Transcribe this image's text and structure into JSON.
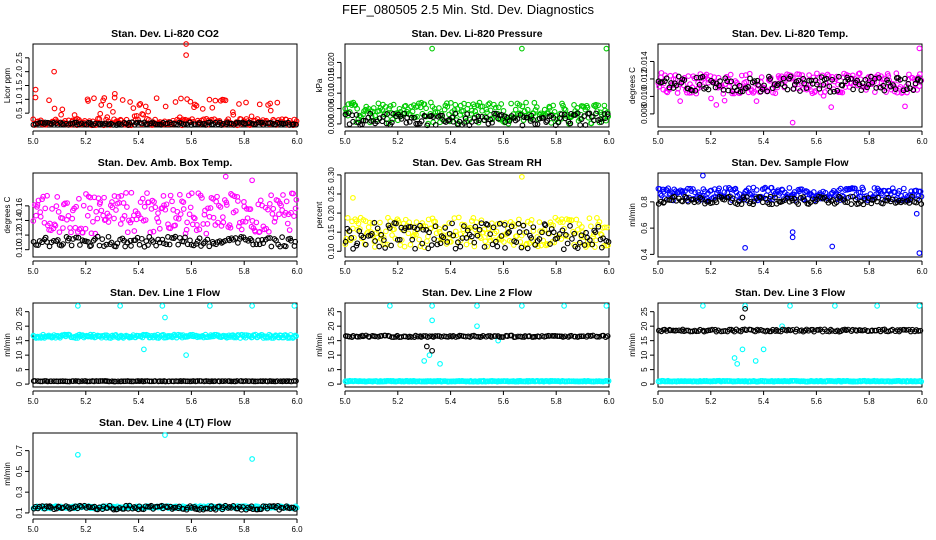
{
  "figure_title": "FEF_080505  2.5 Min. Std. Dev. Diagnostics",
  "chart_data": [
    {
      "type": "scatter",
      "title": "Stan. Dev. Li-820 CO2",
      "ylabel": "Licor ppm",
      "xlabel": "",
      "xlim": [
        5.0,
        6.0
      ],
      "ylim": [
        0.0,
        3.0
      ],
      "xticks": [
        5.0,
        5.2,
        5.4,
        5.6,
        5.8,
        6.0
      ],
      "xtick_labels": [
        "5.0",
        "5.2",
        "5.4",
        "5.6",
        "5.8",
        "6.0"
      ],
      "yticks": [
        0.5,
        1.0,
        1.5,
        2.0,
        2.5
      ],
      "ytick_labels": [
        "0.5",
        "1.0",
        "1.5",
        "2.0",
        "2.5"
      ],
      "series": [
        {
          "name": "red",
          "color": "#ff0000",
          "profile": {
            "base": 0.18,
            "spread": 0.12,
            "outlier_rate": 0.22,
            "outlier_span": 0.9
          },
          "highlights": [
            [
              5.01,
              1.35
            ],
            [
              5.08,
              2.0
            ],
            [
              5.58,
              3.0
            ],
            [
              5.58,
              2.6
            ],
            [
              5.31,
              1.2
            ],
            [
              5.27,
              1.05
            ]
          ]
        },
        {
          "name": "black",
          "color": "#000000",
          "profile": {
            "base": 0.12,
            "spread": 0.05,
            "outlier_rate": 0.0,
            "outlier_span": 0.0
          },
          "highlights": []
        }
      ]
    },
    {
      "type": "scatter",
      "title": "Stan. Dev. Li-820 Pressure",
      "ylabel": "kPa",
      "xlabel": "",
      "xlim": [
        5.0,
        6.0
      ],
      "ylim": [
        -0.001,
        0.026
      ],
      "xticks": [
        5.0,
        5.2,
        5.4,
        5.6,
        5.8,
        6.0
      ],
      "xtick_labels": [
        "5.0",
        "5.2",
        "5.4",
        "5.6",
        "5.8",
        "6.0"
      ],
      "yticks": [
        0.0,
        0.005,
        0.01,
        0.015,
        0.02
      ],
      "ytick_labels": [
        "0.000",
        "0.005",
        "0.010",
        "0.015",
        "0.020"
      ],
      "series": [
        {
          "name": "green",
          "color": "#00cc00",
          "profile": {
            "base": 0.0035,
            "spread": 0.0035,
            "outlier_rate": 0.0,
            "outlier_span": 0.0
          },
          "highlights": [
            [
              5.33,
              0.0245
            ],
            [
              5.67,
              0.0245
            ],
            [
              5.99,
              0.0245
            ]
          ]
        },
        {
          "name": "black",
          "color": "#000000",
          "profile": {
            "base": 0.0015,
            "spread": 0.002,
            "outlier_rate": 0.0,
            "outlier_span": 0.0
          },
          "highlights": []
        }
      ]
    },
    {
      "type": "scatter",
      "title": "Stan. Dev. Li-820 Temp.",
      "ylabel": "degrees C",
      "xlabel": "",
      "xlim": [
        5.0,
        6.0
      ],
      "ylim": [
        0.0065,
        0.016
      ],
      "xticks": [
        5.0,
        5.2,
        5.4,
        5.6,
        5.8,
        6.0
      ],
      "xtick_labels": [
        "5.0",
        "5.2",
        "5.4",
        "5.6",
        "5.8",
        "6.0"
      ],
      "yticks": [
        0.008,
        0.01,
        0.012,
        0.014
      ],
      "ytick_labels": [
        "0.008",
        "0.010",
        "0.012",
        "0.014"
      ],
      "series": [
        {
          "name": "magenta",
          "color": "#ff00ff",
          "profile": {
            "base": 0.0115,
            "spread": 0.0012,
            "outlier_rate": 0.06,
            "outlier_span": -0.003
          },
          "highlights": [
            [
              5.51,
              0.007
            ],
            [
              5.99,
              0.0155
            ]
          ]
        },
        {
          "name": "black",
          "color": "#000000",
          "profile": {
            "base": 0.0114,
            "spread": 0.0009,
            "outlier_rate": 0.0,
            "outlier_span": 0.0
          },
          "highlights": []
        }
      ]
    },
    {
      "type": "scatter",
      "title": "Stan. Dev. Amb. Box Temp.",
      "ylabel": "degrees C",
      "xlabel": "",
      "xlim": [
        5.0,
        6.0
      ],
      "ylim": [
        0.09,
        0.205
      ],
      "xticks": [
        5.0,
        5.2,
        5.4,
        5.6,
        5.8,
        6.0
      ],
      "xtick_labels": [
        "5.0",
        "5.2",
        "5.4",
        "5.6",
        "5.8",
        "6.0"
      ],
      "yticks": [
        0.1,
        0.12,
        0.14,
        0.16
      ],
      "ytick_labels": [
        "0.10",
        "0.12",
        "0.14",
        "0.16"
      ],
      "series": [
        {
          "name": "magenta",
          "color": "#ff00ff",
          "profile": {
            "base": 0.15,
            "spread": 0.028,
            "outlier_rate": 0.0,
            "outlier_span": 0.0
          },
          "highlights": [
            [
              5.73,
              0.2
            ],
            [
              5.83,
              0.195
            ]
          ]
        },
        {
          "name": "black",
          "color": "#000000",
          "profile": {
            "base": 0.111,
            "spread": 0.007,
            "outlier_rate": 0.0,
            "outlier_span": 0.0
          },
          "highlights": []
        }
      ]
    },
    {
      "type": "scatter",
      "title": "Stan. Dev. Gas Stream RH",
      "ylabel": "percent",
      "xlabel": "",
      "xlim": [
        5.0,
        6.0
      ],
      "ylim": [
        0.085,
        0.305
      ],
      "xticks": [
        5.0,
        5.2,
        5.4,
        5.6,
        5.8,
        6.0
      ],
      "xtick_labels": [
        "5.0",
        "5.2",
        "5.4",
        "5.6",
        "5.8",
        "6.0"
      ],
      "yticks": [
        0.1,
        0.15,
        0.2,
        0.25,
        0.3
      ],
      "ytick_labels": [
        "0.10",
        "0.15",
        "0.20",
        "0.25",
        "0.30"
      ],
      "series": [
        {
          "name": "yellow",
          "color": "#ffff00",
          "profile": {
            "base": 0.15,
            "spread": 0.04,
            "outlier_rate": 0.0,
            "outlier_span": 0.0
          },
          "highlights": [
            [
              5.67,
              0.295
            ],
            [
              5.03,
              0.24
            ]
          ]
        },
        {
          "name": "black",
          "color": "#000000",
          "profile": {
            "base": 0.14,
            "spread": 0.035,
            "outlier_rate": 0.0,
            "outlier_span": 0.0
          },
          "highlights": []
        }
      ]
    },
    {
      "type": "scatter",
      "title": "Stan. Dev. Sample Flow",
      "ylabel": "ml/min",
      "xlabel": "",
      "xlim": [
        5.0,
        6.0
      ],
      "ylim": [
        0.38,
        1.02
      ],
      "xticks": [
        5.0,
        5.2,
        5.4,
        5.6,
        5.8,
        6.0
      ],
      "xtick_labels": [
        "5.0",
        "5.2",
        "5.4",
        "5.6",
        "5.8",
        "6.0"
      ],
      "yticks": [
        0.4,
        0.6,
        0.8
      ],
      "ytick_labels": [
        "0.4",
        "0.6",
        "0.8"
      ],
      "series": [
        {
          "name": "blue",
          "color": "#0000ff",
          "profile": {
            "base": 0.86,
            "spread": 0.05,
            "outlier_rate": 0.0,
            "outlier_span": 0.0
          },
          "highlights": [
            [
              5.17,
              1.0
            ],
            [
              5.33,
              0.45
            ],
            [
              5.51,
              0.57
            ],
            [
              5.51,
              0.53
            ],
            [
              5.66,
              0.46
            ],
            [
              5.99,
              0.41
            ],
            [
              5.98,
              0.71
            ]
          ]
        },
        {
          "name": "black",
          "color": "#000000",
          "profile": {
            "base": 0.81,
            "spread": 0.03,
            "outlier_rate": 0.0,
            "outlier_span": 0.0
          },
          "highlights": []
        }
      ]
    },
    {
      "type": "scatter",
      "title": "Stan. Dev. Line 1 Flow",
      "ylabel": "ml/min",
      "xlabel": "",
      "xlim": [
        5.0,
        6.0
      ],
      "ylim": [
        -1.0,
        28.0
      ],
      "xticks": [
        5.0,
        5.2,
        5.4,
        5.6,
        5.8,
        6.0
      ],
      "xtick_labels": [
        "5.0",
        "5.2",
        "5.4",
        "5.6",
        "5.8",
        "6.0"
      ],
      "yticks": [
        0,
        5,
        10,
        15,
        20,
        25
      ],
      "ytick_labels": [
        "0",
        "5",
        "10",
        "15",
        "20",
        "25"
      ],
      "series": [
        {
          "name": "cyan",
          "color": "#00ffff",
          "profile": {
            "base": 16.5,
            "spread": 0.6,
            "outlier_rate": 0.0,
            "outlier_span": 0.0
          },
          "highlights": [
            [
              5.17,
              27
            ],
            [
              5.33,
              27
            ],
            [
              5.49,
              27
            ],
            [
              5.67,
              27
            ],
            [
              5.83,
              27
            ],
            [
              5.99,
              27
            ],
            [
              5.5,
              23
            ],
            [
              5.58,
              10
            ],
            [
              5.42,
              12
            ]
          ]
        },
        {
          "name": "black",
          "color": "#000000",
          "profile": {
            "base": 1.0,
            "spread": 0.1,
            "outlier_rate": 0.0,
            "outlier_span": 0.0
          },
          "highlights": []
        }
      ]
    },
    {
      "type": "scatter",
      "title": "Stan. Dev. Line 2 Flow",
      "ylabel": "ml/min",
      "xlabel": "",
      "xlim": [
        5.0,
        6.0
      ],
      "ylim": [
        -1.0,
        28.0
      ],
      "xticks": [
        5.0,
        5.2,
        5.4,
        5.6,
        5.8,
        6.0
      ],
      "xtick_labels": [
        "5.0",
        "5.2",
        "5.4",
        "5.6",
        "5.8",
        "6.0"
      ],
      "yticks": [
        0,
        5,
        10,
        15,
        20,
        25
      ],
      "ytick_labels": [
        "0",
        "5",
        "10",
        "15",
        "20",
        "25"
      ],
      "series": [
        {
          "name": "cyan",
          "color": "#00ffff",
          "profile": {
            "base": 1.0,
            "spread": 0.15,
            "outlier_rate": 0.0,
            "outlier_span": 0.0
          },
          "highlights": [
            [
              5.17,
              27
            ],
            [
              5.33,
              27
            ],
            [
              5.5,
              27
            ],
            [
              5.67,
              27
            ],
            [
              5.83,
              27
            ],
            [
              5.99,
              27
            ],
            [
              5.3,
              8
            ],
            [
              5.32,
              10
            ],
            [
              5.36,
              7
            ],
            [
              5.33,
              22
            ],
            [
              5.5,
              20
            ],
            [
              5.58,
              15
            ]
          ]
        },
        {
          "name": "black",
          "color": "#000000",
          "profile": {
            "base": 16.5,
            "spread": 0.3,
            "outlier_rate": 0.0,
            "outlier_span": 0.0
          },
          "highlights": [
            [
              5.31,
              13
            ],
            [
              5.33,
              11.5
            ]
          ]
        }
      ]
    },
    {
      "type": "scatter",
      "title": "Stan. Dev. Line 3 Flow",
      "ylabel": "ml/min",
      "xlabel": "",
      "xlim": [
        5.0,
        6.0
      ],
      "ylim": [
        -1.0,
        28.0
      ],
      "xticks": [
        5.0,
        5.2,
        5.4,
        5.6,
        5.8,
        6.0
      ],
      "xtick_labels": [
        "5.0",
        "5.2",
        "5.4",
        "5.6",
        "5.8",
        "6.0"
      ],
      "yticks": [
        0,
        5,
        10,
        15,
        20,
        25
      ],
      "ytick_labels": [
        "0",
        "5",
        "10",
        "15",
        "20",
        "25"
      ],
      "series": [
        {
          "name": "cyan",
          "color": "#00ffff",
          "profile": {
            "base": 1.0,
            "spread": 0.15,
            "outlier_rate": 0.0,
            "outlier_span": 0.0
          },
          "highlights": [
            [
              5.17,
              27
            ],
            [
              5.33,
              27
            ],
            [
              5.5,
              27
            ],
            [
              5.67,
              27
            ],
            [
              5.83,
              27
            ],
            [
              5.99,
              27
            ],
            [
              5.29,
              9
            ],
            [
              5.3,
              7
            ],
            [
              5.32,
              12
            ],
            [
              5.4,
              12
            ],
            [
              5.37,
              8
            ],
            [
              5.47,
              20
            ]
          ]
        },
        {
          "name": "black",
          "color": "#000000",
          "profile": {
            "base": 18.5,
            "spread": 0.4,
            "outlier_rate": 0.0,
            "outlier_span": 0.0
          },
          "highlights": [
            [
              5.33,
              26
            ],
            [
              5.32,
              23
            ]
          ]
        }
      ]
    },
    {
      "type": "scatter",
      "title": "Stan. Dev. Line 4 (LT) Flow",
      "ylabel": "ml/min",
      "xlabel": "",
      "xlim": [
        5.0,
        6.0
      ],
      "ylim": [
        0.08,
        0.87
      ],
      "xticks": [
        5.0,
        5.2,
        5.4,
        5.6,
        5.8,
        6.0
      ],
      "xtick_labels": [
        "5.0",
        "5.2",
        "5.4",
        "5.6",
        "5.8",
        "6.0"
      ],
      "yticks": [
        0.1,
        0.3,
        0.5,
        0.7
      ],
      "ytick_labels": [
        "0.1",
        "0.3",
        "0.5",
        "0.7"
      ],
      "series": [
        {
          "name": "cyan",
          "color": "#00ffff",
          "profile": {
            "base": 0.155,
            "spread": 0.012,
            "outlier_rate": 0.0,
            "outlier_span": 0.0
          },
          "highlights": [
            [
              5.17,
              0.66
            ],
            [
              5.5,
              0.85
            ],
            [
              5.83,
              0.62
            ]
          ]
        },
        {
          "name": "black",
          "color": "#000000",
          "profile": {
            "base": 0.15,
            "spread": 0.02,
            "outlier_rate": 0.0,
            "outlier_span": 0.0
          },
          "highlights": []
        }
      ]
    }
  ]
}
